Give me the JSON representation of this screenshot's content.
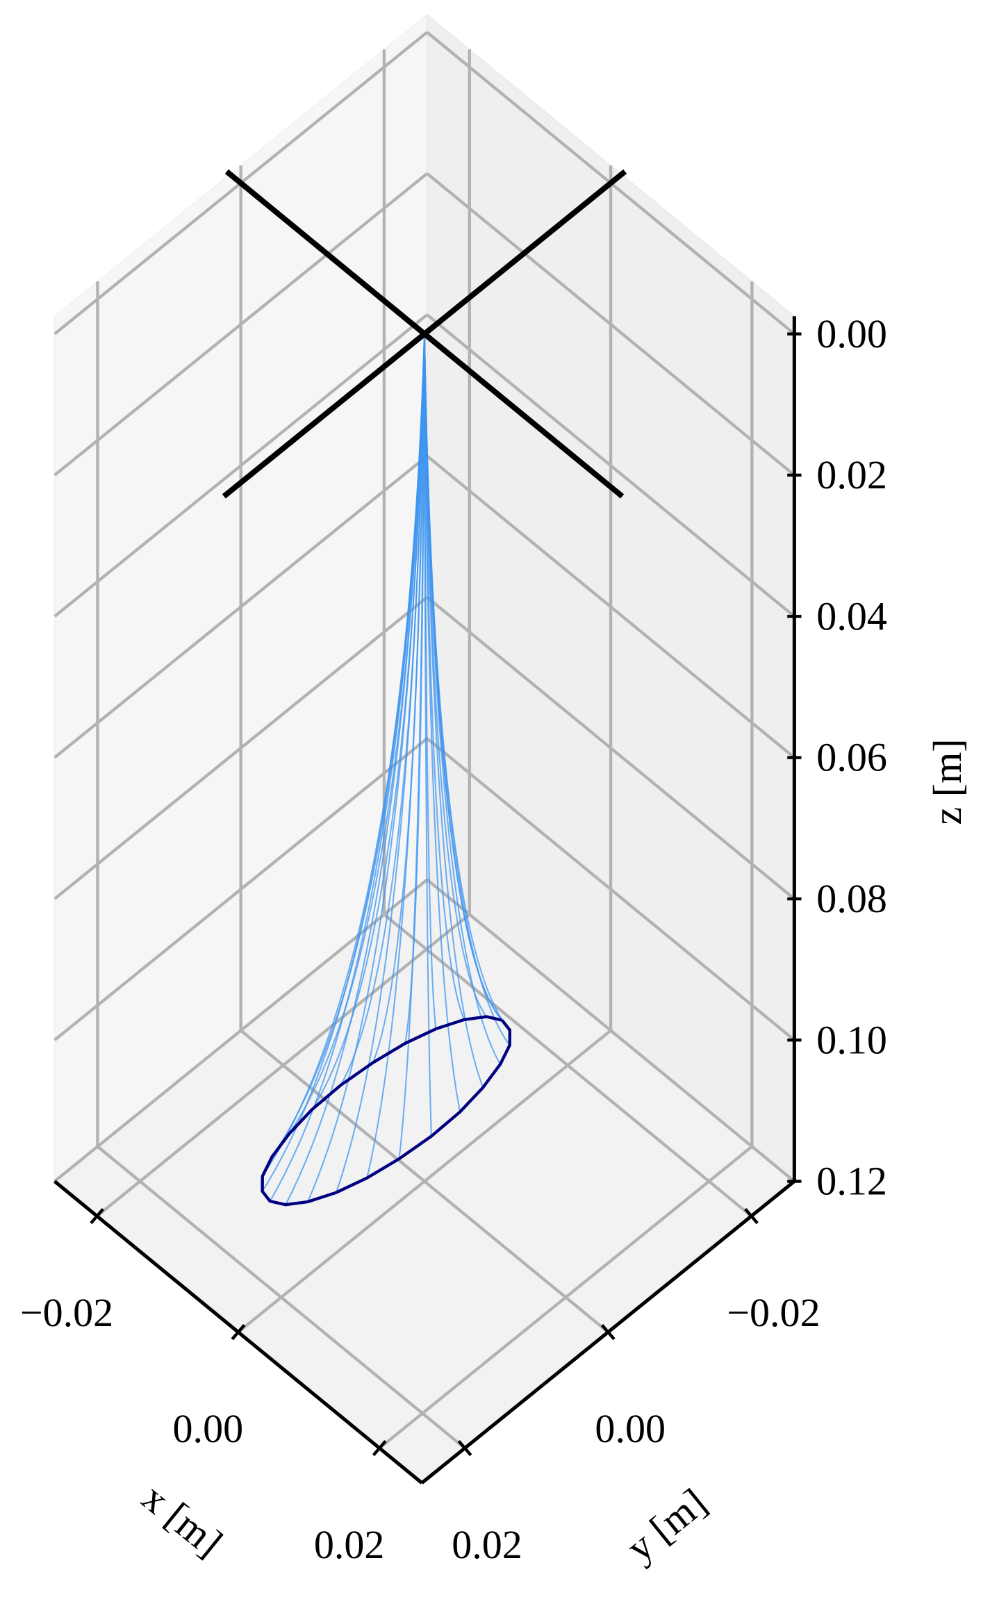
{
  "chart_data": {
    "type": "line3d",
    "xlabel": "x [m]",
    "ylabel": "y [m]",
    "zlabel": "z [m]",
    "xlim": [
      -0.026,
      0.026
    ],
    "ylim": [
      -0.026,
      0.026
    ],
    "zlim": [
      -0.0025,
      0.12
    ],
    "z_inverted": true,
    "xticks": [
      {
        "value": -0.02,
        "label": "−0.02"
      },
      {
        "value": 0,
        "label": "0.00"
      },
      {
        "value": 0.02,
        "label": "0.02"
      }
    ],
    "yticks": [
      {
        "value": -0.02,
        "label": "−0.02"
      },
      {
        "value": 0,
        "label": "0.00"
      },
      {
        "value": 0.02,
        "label": "0.02"
      }
    ],
    "zticks": [
      {
        "value": 0,
        "label": "0.00"
      },
      {
        "value": 0.02,
        "label": "0.02"
      },
      {
        "value": 0.04,
        "label": "0.04"
      },
      {
        "value": 0.06,
        "label": "0.06"
      },
      {
        "value": 0.08,
        "label": "0.08"
      },
      {
        "value": 0.1,
        "label": "0.10"
      },
      {
        "value": 0.12,
        "label": "0.12"
      }
    ],
    "grid": true,
    "series": [
      {
        "color": "#000080",
        "rays_color": "#3d94f0",
        "rays_from": [
          0,
          0,
          0
        ],
        "x": [
          -0.0024,
          -0.0038,
          -0.0051,
          -0.0063,
          -0.0072,
          -0.0078,
          -0.0081,
          -0.008,
          -0.0075,
          -0.0067,
          -0.0057,
          -0.0044,
          -0.003,
          -0.0016,
          -0.0003,
          0.0009,
          0.0018,
          0.0024,
          0.0027,
          0.0026,
          0.0021,
          0.0013,
          0.0003,
          -0.001,
          -0.0024
        ],
        "y": [
          -0.0132,
          -0.0124,
          -0.0106,
          -0.0078,
          -0.0044,
          -0.0005,
          0.0037,
          0.0078,
          0.0115,
          0.0147,
          0.017,
          0.0183,
          0.0186,
          0.0178,
          0.016,
          0.0132,
          0.0098,
          0.0059,
          0.0017,
          -0.0024,
          -0.0061,
          -0.0093,
          -0.0116,
          -0.0129,
          -0.0132
        ],
        "z": [
          0.11,
          0.11,
          0.11,
          0.11,
          0.11,
          0.11,
          0.11,
          0.11,
          0.11,
          0.11,
          0.11,
          0.11,
          0.11,
          0.11,
          0.11,
          0.11,
          0.11,
          0.11,
          0.11,
          0.11,
          0.11,
          0.11,
          0.11,
          0.11,
          0.11
        ]
      },
      {
        "color": "#000000",
        "x": [
          -0.028,
          0.028
        ],
        "y": [
          0,
          0
        ],
        "z": [
          0,
          0
        ]
      },
      {
        "color": "#000000",
        "x": [
          0,
          0
        ],
        "y": [
          -0.028,
          0.028
        ],
        "z": [
          0,
          0
        ]
      }
    ]
  }
}
